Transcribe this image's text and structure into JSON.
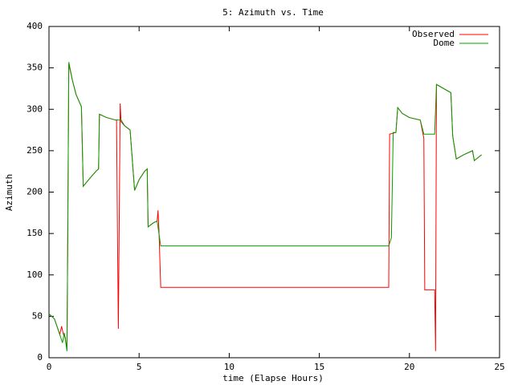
{
  "chart_data": {
    "type": "line",
    "title": "5: Azimuth vs. Time",
    "xlabel": "time (Elapse Hours)",
    "ylabel": "Azimuth",
    "xlim": [
      0,
      25
    ],
    "xticks": [
      0,
      5,
      10,
      15,
      20,
      25
    ],
    "ylim": [
      0,
      400
    ],
    "yticks": [
      0,
      50,
      100,
      150,
      200,
      250,
      300,
      350,
      400
    ],
    "grid": false,
    "legend": "top-right",
    "series": [
      {
        "name": "Observed",
        "color": "#ff0000",
        "x": [
          0,
          0.3,
          0.6,
          0.7,
          0.8,
          0.9,
          1.0,
          1.05,
          1.1,
          1.3,
          1.5,
          1.8,
          1.9,
          2.2,
          2.6,
          2.75,
          2.8,
          3.2,
          3.7,
          3.75,
          3.8,
          3.85,
          3.95,
          4.0,
          4.2,
          4.5,
          4.75,
          5.0,
          5.3,
          5.45,
          5.5,
          5.8,
          6.0,
          6.05,
          6.1,
          6.2,
          18.85,
          18.9,
          19.25,
          19.35,
          19.6,
          20.0,
          20.6,
          20.8,
          20.85,
          21.4,
          21.45,
          21.5,
          22.3,
          22.4,
          22.6,
          23.0,
          23.5,
          23.6,
          24.0
        ],
        "values": [
          53,
          47,
          28,
          38,
          28,
          25,
          10,
          180,
          355,
          335,
          318,
          303,
          207,
          215,
          225,
          228,
          294,
          290,
          287,
          287,
          150,
          35,
          307,
          285,
          280,
          275,
          202,
          215,
          225,
          228,
          158,
          163,
          165,
          178,
          155,
          85,
          85,
          270,
          272,
          302,
          295,
          290,
          287,
          265,
          82,
          82,
          8,
          330,
          320,
          268,
          240,
          245,
          250,
          238,
          245
        ]
      },
      {
        "name": "Dome",
        "color": "#00a000",
        "x": [
          0,
          0.3,
          0.6,
          0.75,
          0.85,
          1.0,
          1.05,
          1.1,
          1.3,
          1.5,
          1.8,
          1.9,
          2.2,
          2.6,
          2.75,
          2.8,
          3.2,
          3.7,
          4.0,
          4.2,
          4.5,
          4.75,
          5.0,
          5.3,
          5.45,
          5.5,
          5.8,
          6.0,
          6.2,
          18.85,
          19.0,
          19.1,
          19.25,
          19.35,
          19.6,
          20.0,
          20.6,
          20.8,
          21.4,
          21.5,
          22.3,
          22.4,
          22.6,
          23.0,
          23.5,
          23.6,
          24.0
        ],
        "values": [
          53,
          47,
          28,
          18,
          30,
          8,
          180,
          357,
          335,
          318,
          303,
          207,
          215,
          225,
          228,
          294,
          290,
          287,
          287,
          280,
          275,
          202,
          215,
          225,
          228,
          158,
          163,
          165,
          135,
          135,
          145,
          272,
          272,
          302,
          295,
          290,
          287,
          270,
          270,
          330,
          320,
          268,
          240,
          245,
          250,
          238,
          245
        ]
      }
    ]
  }
}
